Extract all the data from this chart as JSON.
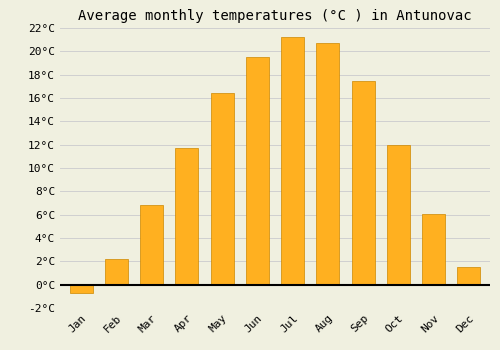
{
  "title": "Average monthly temperatures (°C ) in Antunovac",
  "months": [
    "Jan",
    "Feb",
    "Mar",
    "Apr",
    "May",
    "Jun",
    "Jul",
    "Aug",
    "Sep",
    "Oct",
    "Nov",
    "Dec"
  ],
  "values": [
    -0.7,
    2.2,
    6.8,
    11.7,
    16.4,
    19.5,
    21.2,
    20.7,
    17.5,
    12.0,
    6.1,
    1.5
  ],
  "bar_color": "#FFB020",
  "bar_edge_color": "#CC8800",
  "background_color": "#f0f0e0",
  "grid_color": "#d0d0d0",
  "ylim": [
    -2,
    22
  ],
  "yticks": [
    -2,
    0,
    2,
    4,
    6,
    8,
    10,
    12,
    14,
    16,
    18,
    20,
    22
  ],
  "title_fontsize": 10,
  "tick_fontsize": 8,
  "font_family": "monospace"
}
